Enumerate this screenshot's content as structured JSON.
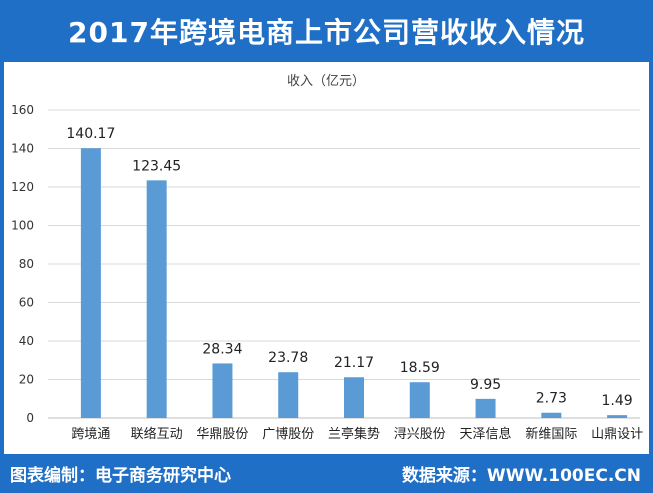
{
  "header": {
    "title": "2017年跨境电商上市公司营收收入情况"
  },
  "footer": {
    "left": "图表编制：电子商务研究中心",
    "right": "数据来源：WWW.100EC.CN"
  },
  "colors": {
    "brand": "#1f6fc6",
    "bar": "#5b9bd5",
    "grid": "#d9d9d9"
  },
  "chart_data": {
    "type": "bar",
    "title": "2017年跨境电商上市公司营收收入情况",
    "ylabel": "收入（亿元）",
    "xlabel": "",
    "ylim": [
      0,
      160
    ],
    "yticks": [
      0,
      20,
      40,
      60,
      80,
      100,
      120,
      140,
      160
    ],
    "grid": true,
    "categories": [
      "跨境通",
      "联络互动",
      "华鼎股份",
      "广博股份",
      "兰亭集势",
      "浔兴股份",
      "天泽信息",
      "新维国际",
      "山鼎设计"
    ],
    "values": [
      140.17,
      123.45,
      28.34,
      23.78,
      21.17,
      18.59,
      9.95,
      2.73,
      1.49
    ],
    "value_labels": [
      "140.17",
      "123.45",
      "28.34",
      "23.78",
      "21.17",
      "18.59",
      "9.95",
      "2.73",
      "1.49"
    ]
  }
}
